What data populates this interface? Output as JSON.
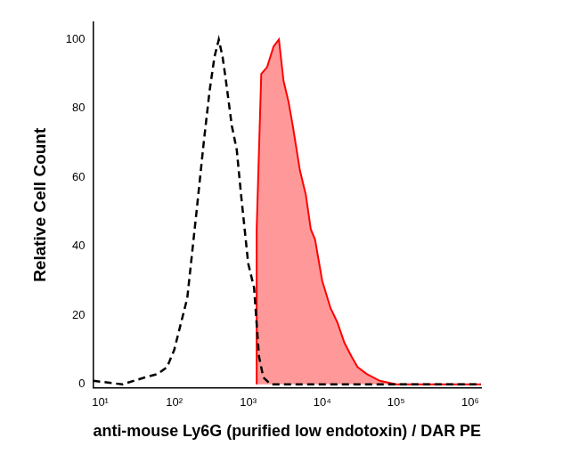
{
  "chart_data": {
    "type": "line",
    "x_label": "anti-mouse Ly6G (purified low endotoxin) / DAR PE",
    "y_label": "Relative Cell Count",
    "log": "x",
    "grid": false,
    "xlim": [
      8,
      1400000
    ],
    "xticks": [
      {
        "value": 10,
        "label": "10¹"
      },
      {
        "value": 100,
        "label": "10²"
      },
      {
        "value": 1000,
        "label": "10³"
      },
      {
        "value": 10000,
        "label": "10⁴"
      },
      {
        "value": 100000,
        "label": "10⁵"
      },
      {
        "value": 1000000,
        "label": "10⁶"
      }
    ],
    "ylim": [
      -1,
      105
    ],
    "yticks": [
      0,
      20,
      40,
      60,
      80,
      100
    ],
    "series": [
      {
        "color": "#000000",
        "line_style": "dashed",
        "marker": "none",
        "type": "line",
        "x": [
          8,
          20,
          40,
          60,
          80,
          100,
          150,
          200,
          250,
          300,
          350,
          400,
          450,
          500,
          600,
          700,
          800,
          1000,
          1200,
          1400,
          1600,
          2000,
          3000,
          1400000
        ],
        "values": [
          1,
          0,
          2,
          3,
          5,
          10,
          25,
          50,
          70,
          85,
          95,
          100,
          95,
          88,
          75,
          68,
          55,
          35,
          28,
          8,
          2,
          0,
          0,
          0
        ]
      },
      {
        "color": "#ff0000",
        "line_style": "solid",
        "marker": "none",
        "type": "area",
        "x": [
          1300,
          1300,
          1500,
          1800,
          2200,
          2600,
          3000,
          3500,
          4000,
          5000,
          6000,
          7000,
          8000,
          10000,
          13000,
          16000,
          20000,
          25000,
          30000,
          40000,
          60000,
          100000,
          1400000
        ],
        "values": [
          0,
          45,
          90,
          92,
          98,
          100,
          88,
          82,
          75,
          62,
          55,
          45,
          42,
          30,
          22,
          18,
          12,
          8,
          5,
          3,
          1,
          0,
          0
        ]
      }
    ]
  }
}
